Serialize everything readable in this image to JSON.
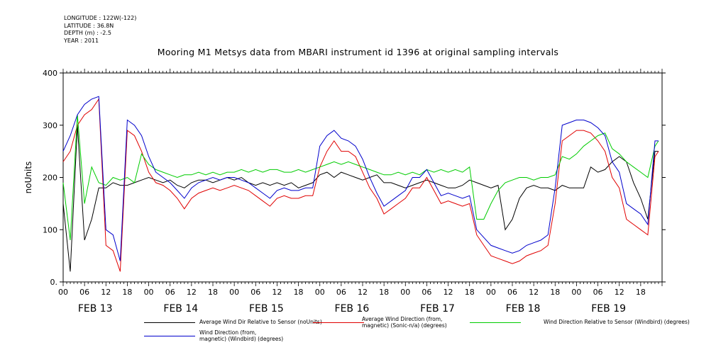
{
  "meta": {
    "longitude": "LONGITUDE : 122W(-122)",
    "latitude": "LATITUDE : 36.8N",
    "depth": "DEPTH (m) : -2.5",
    "year": "YEAR : 2011"
  },
  "title": "Mooring M1 Metsys data from MBARI instrument id 1396 at original sampling intervals",
  "legend": [
    {
      "name": "Average Wind Dir Relative to Sensor (noUnits)",
      "color": "#000000"
    },
    {
      "name": "Average Wind Direction (from,\n magnetic) (Sonic-n/a) (degrees)",
      "color": "#e00000"
    },
    {
      "name": "Wind Direction Relative to Sensor (Windbird) (degrees)",
      "color": "#00cc00"
    },
    {
      "name": "Wind Direction (from,\n magnetic) (Windbird) (degrees)",
      "color": "#0000cc"
    }
  ],
  "chart_data": {
    "type": "line",
    "ylabel": "noUnits",
    "ylim": [
      0,
      400
    ],
    "yticks": [
      0,
      100,
      200,
      300,
      400
    ],
    "xlim": [
      0,
      168
    ],
    "hour_ticks": [
      "00",
      "06",
      "12",
      "18",
      "00",
      "06",
      "12",
      "18",
      "00",
      "06",
      "12",
      "18",
      "00",
      "06",
      "12",
      "18",
      "00",
      "06",
      "12",
      "18",
      "00",
      "06",
      "12",
      "18",
      "00",
      "06",
      "12",
      "18"
    ],
    "day_labels": [
      "FEB 13",
      "FEB 14",
      "FEB 15",
      "FEB 16",
      "FEB 17",
      "FEB 18",
      "FEB 19"
    ],
    "x_hours": [
      0,
      2,
      4,
      6,
      8,
      10,
      12,
      14,
      16,
      18,
      20,
      22,
      24,
      26,
      28,
      30,
      32,
      34,
      36,
      38,
      40,
      42,
      44,
      46,
      48,
      50,
      52,
      54,
      56,
      58,
      60,
      62,
      64,
      66,
      68,
      70,
      72,
      74,
      76,
      78,
      80,
      82,
      84,
      86,
      88,
      90,
      92,
      94,
      96,
      98,
      100,
      102,
      104,
      106,
      108,
      110,
      112,
      114,
      116,
      118,
      120,
      122,
      124,
      126,
      128,
      130,
      132,
      134,
      136,
      138,
      140,
      142,
      144,
      146,
      148,
      150,
      152,
      154,
      156,
      158,
      160,
      162,
      164,
      166,
      167
    ],
    "series": [
      {
        "name": "Average Wind Dir Relative to Sensor (noUnits)",
        "color": "#000000",
        "values": [
          150,
          20,
          300,
          80,
          120,
          180,
          180,
          190,
          185,
          185,
          190,
          195,
          200,
          195,
          190,
          195,
          185,
          180,
          190,
          195,
          195,
          190,
          195,
          200,
          195,
          200,
          190,
          185,
          190,
          185,
          190,
          185,
          190,
          180,
          185,
          190,
          205,
          210,
          200,
          210,
          205,
          200,
          195,
          200,
          205,
          190,
          190,
          185,
          180,
          185,
          190,
          195,
          190,
          185,
          180,
          180,
          185,
          195,
          190,
          185,
          180,
          185,
          100,
          120,
          160,
          180,
          185,
          180,
          180,
          175,
          185,
          180,
          180,
          180,
          220,
          210,
          215,
          230,
          240,
          230,
          190,
          160,
          120,
          250,
          250
        ]
      },
      {
        "name": "Average Wind Direction (from,\n magnetic) (Sonic-n/a) (degrees)",
        "color": "#e00000",
        "values": [
          230,
          250,
          300,
          320,
          330,
          350,
          70,
          60,
          20,
          290,
          280,
          250,
          210,
          190,
          185,
          175,
          160,
          140,
          160,
          170,
          175,
          180,
          175,
          180,
          185,
          180,
          175,
          165,
          155,
          145,
          160,
          165,
          160,
          160,
          165,
          165,
          220,
          250,
          270,
          250,
          250,
          240,
          210,
          180,
          160,
          130,
          140,
          150,
          160,
          180,
          180,
          200,
          175,
          150,
          155,
          150,
          145,
          150,
          90,
          70,
          50,
          45,
          40,
          35,
          40,
          50,
          55,
          60,
          70,
          150,
          270,
          280,
          290,
          290,
          285,
          270,
          250,
          200,
          180,
          120,
          110,
          100,
          90,
          240,
          250
        ]
      },
      {
        "name": "Wind Direction Relative to Sensor (Windbird) (degrees)",
        "color": "#00cc00",
        "values": [
          190,
          80,
          320,
          150,
          220,
          190,
          185,
          200,
          195,
          200,
          190,
          245,
          225,
          215,
          210,
          205,
          200,
          205,
          205,
          210,
          205,
          210,
          205,
          210,
          210,
          215,
          210,
          215,
          210,
          215,
          215,
          210,
          210,
          215,
          210,
          215,
          220,
          225,
          230,
          225,
          230,
          225,
          220,
          215,
          210,
          205,
          205,
          210,
          205,
          210,
          205,
          215,
          210,
          215,
          210,
          215,
          210,
          220,
          120,
          120,
          150,
          175,
          190,
          195,
          200,
          200,
          195,
          200,
          200,
          205,
          240,
          235,
          245,
          260,
          270,
          280,
          285,
          255,
          245,
          230,
          220,
          210,
          200,
          260,
          270
        ]
      },
      {
        "name": "Wind Direction (from,\n magnetic) (Windbird) (degrees)",
        "color": "#0000cc",
        "values": [
          250,
          280,
          320,
          340,
          350,
          355,
          100,
          90,
          40,
          310,
          300,
          280,
          240,
          210,
          200,
          190,
          175,
          160,
          180,
          190,
          195,
          200,
          195,
          200,
          200,
          195,
          190,
          180,
          170,
          160,
          175,
          180,
          175,
          175,
          180,
          180,
          260,
          280,
          290,
          275,
          270,
          260,
          235,
          200,
          170,
          145,
          155,
          165,
          175,
          200,
          200,
          215,
          190,
          165,
          170,
          165,
          160,
          165,
          100,
          85,
          70,
          65,
          60,
          55,
          60,
          70,
          75,
          80,
          90,
          180,
          300,
          305,
          310,
          310,
          305,
          295,
          280,
          230,
          210,
          150,
          140,
          130,
          110,
          270,
          270
        ]
      }
    ]
  }
}
